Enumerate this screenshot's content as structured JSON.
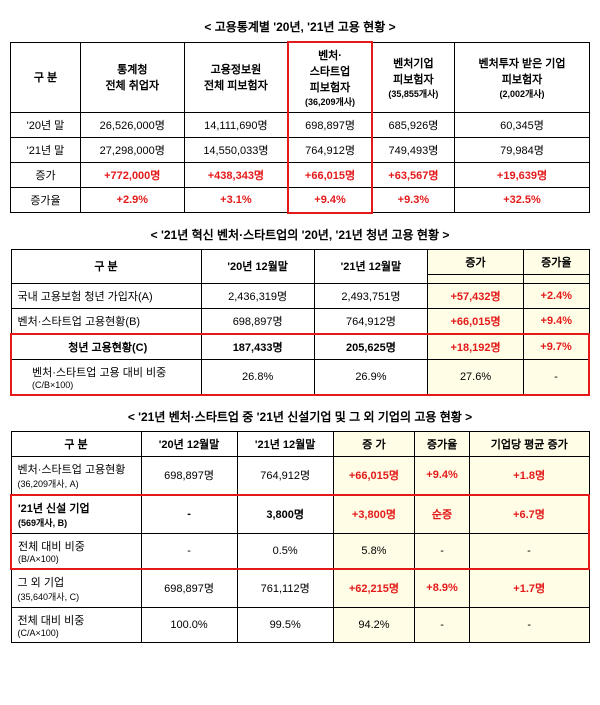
{
  "t1": {
    "title": "< 고용통계별 '20년, '21년 고용 현황 >",
    "headers": {
      "gubun": "구 분",
      "c1": "통계청\n전체 취업자",
      "c2": "고용정보원\n전체 피보험자",
      "c3": "벤처·\n스타트업\n피보험자",
      "c3sub": "(36,209개사)",
      "c4": "벤처기업\n피보험자",
      "c4sub": "(35,855개사)",
      "c5": "벤처투자 받은 기업\n피보험자",
      "c5sub": "(2,002개사)"
    },
    "rows": [
      {
        "label": "'20년 말",
        "v": [
          "26,526,000명",
          "14,111,690명",
          "698,897명",
          "685,926명",
          "60,345명"
        ]
      },
      {
        "label": "'21년 말",
        "v": [
          "27,298,000명",
          "14,550,033명",
          "764,912명",
          "749,493명",
          "79,984명"
        ]
      },
      {
        "label": "증가",
        "v": [
          "+772,000명",
          "+438,343명",
          "+66,015명",
          "+63,567명",
          "+19,639명"
        ],
        "red": true
      },
      {
        "label": "증가율",
        "v": [
          "+2.9%",
          "+3.1%",
          "+9.4%",
          "+9.3%",
          "+32.5%"
        ],
        "red": true
      }
    ]
  },
  "t2": {
    "title": "< '21년 혁신 벤처·스타트업의 '20년, '21년 청년 고용 현황 >",
    "headers": {
      "gubun": "구 분",
      "c1": "'20년 12월말",
      "c2": "'21년 12월말",
      "c3": "증가",
      "c4": "증가율"
    },
    "rows": [
      {
        "label": "국내 고용보험 청년 가입자(A)",
        "v": [
          "2,436,319명",
          "2,493,751명",
          "+57,432명",
          "+2.4%"
        ]
      },
      {
        "label": "벤처·스타트업 고용현황(B)",
        "v": [
          "698,897명",
          "764,912명",
          "+66,015명",
          "+9.4%"
        ]
      },
      {
        "label": "청년 고용현황(C)",
        "v": [
          "187,433명",
          "205,625명",
          "+18,192명",
          "+9.7%"
        ],
        "hl": true
      },
      {
        "label": "벤처·스타트업 고용 대비 비중\n(C/B×100)",
        "v": [
          "26.8%",
          "26.9%",
          "27.6%",
          "-"
        ],
        "indent": true,
        "hl": true,
        "bottomHl": true
      }
    ]
  },
  "t3": {
    "title": "< '21년 벤처·스타트업 중 '21년 신설기업 및 그 외 기업의 고용 현황 >",
    "headers": {
      "gubun": "구 분",
      "c1": "'20년 12월말",
      "c2": "'21년 12월말",
      "c3": "증 가",
      "c4": "증가율",
      "c5": "기업당 평균 증가"
    },
    "rows": [
      {
        "label": "벤처·스타트업 고용현황",
        "sub": "(36,209개사, A)",
        "v": [
          "698,897명",
          "764,912명",
          "+66,015명",
          "+9.4%",
          "+1.8명"
        ]
      },
      {
        "label": "'21년 신설 기업",
        "sub": "(569개사, B)",
        "v": [
          "-",
          "3,800명",
          "+3,800명",
          "순증",
          "+6.7명"
        ],
        "hl": true,
        "topHl": true,
        "redCols": [
          2,
          4
        ]
      },
      {
        "label": "전체 대비 비중",
        "sub": "(B/A×100)",
        "v": [
          "-",
          "0.5%",
          "5.8%",
          "-",
          "-"
        ],
        "indent": true,
        "hl": true,
        "bottomHl": true
      },
      {
        "label": "그 외 기업",
        "sub": "(35,640개사, C)",
        "v": [
          "698,897명",
          "761,112명",
          "+62,215명",
          "+8.9%",
          "+1.7명"
        ],
        "redCols": [
          2
        ]
      },
      {
        "label": "전체 대비 비중",
        "sub": "(C/A×100)",
        "v": [
          "100.0%",
          "99.5%",
          "94.2%",
          "-",
          "-"
        ],
        "indent": true
      }
    ]
  },
  "colors": {
    "red": "#e41a1a",
    "yellow": "#fffde6",
    "border": "#000000"
  }
}
